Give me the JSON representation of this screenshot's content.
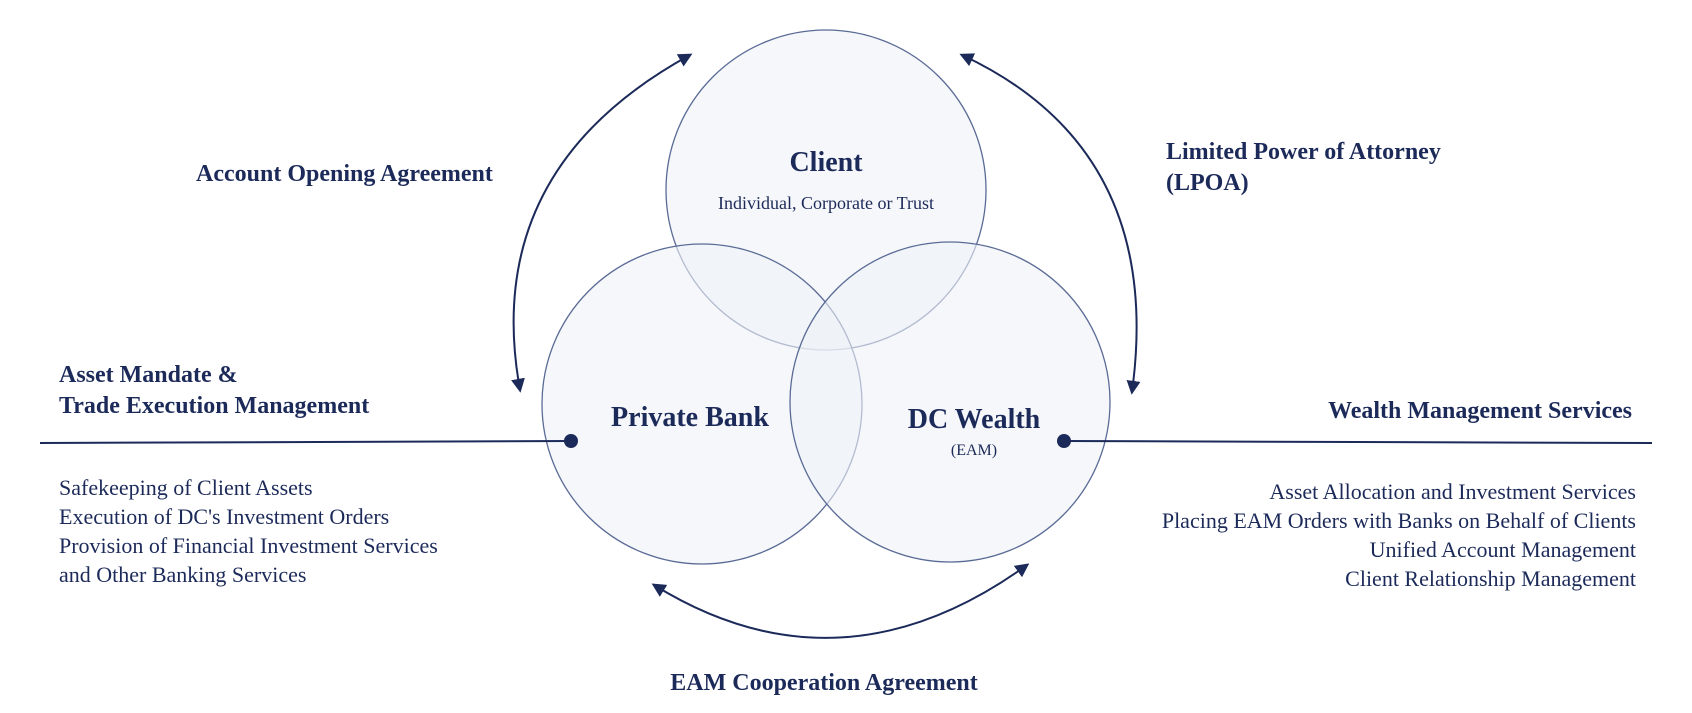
{
  "circles": {
    "client": {
      "title": "Client",
      "subtitle": "Individual, Corporate or Trust"
    },
    "private_bank": {
      "title": "Private Bank"
    },
    "dc_wealth": {
      "title": "DC Wealth",
      "subtitle": "(EAM)"
    }
  },
  "agreements": {
    "account_opening": "Account Opening Agreement",
    "lpoa_line1": "Limited Power of Attorney",
    "lpoa_line2": "(LPOA)",
    "eam_cooperation": "EAM Cooperation Agreement"
  },
  "left_panel": {
    "heading_line1": "Asset Mandate &",
    "heading_line2": "Trade Execution Management",
    "items": [
      "Safekeeping of Client Assets",
      "Execution of DC's Investment Orders",
      "Provision of Financial Investment Services",
      "and Other Banking Services"
    ]
  },
  "right_panel": {
    "heading": "Wealth Management Services",
    "items": [
      "Asset Allocation and Investment Services",
      "Placing EAM Orders with Banks on Behalf of Clients",
      "Unified Account Management",
      "Client Relationship Management"
    ]
  },
  "colors": {
    "navy": "#1c2a5a",
    "circle_fill": "#eef1f7",
    "circle_stroke": "#5a6b96"
  }
}
